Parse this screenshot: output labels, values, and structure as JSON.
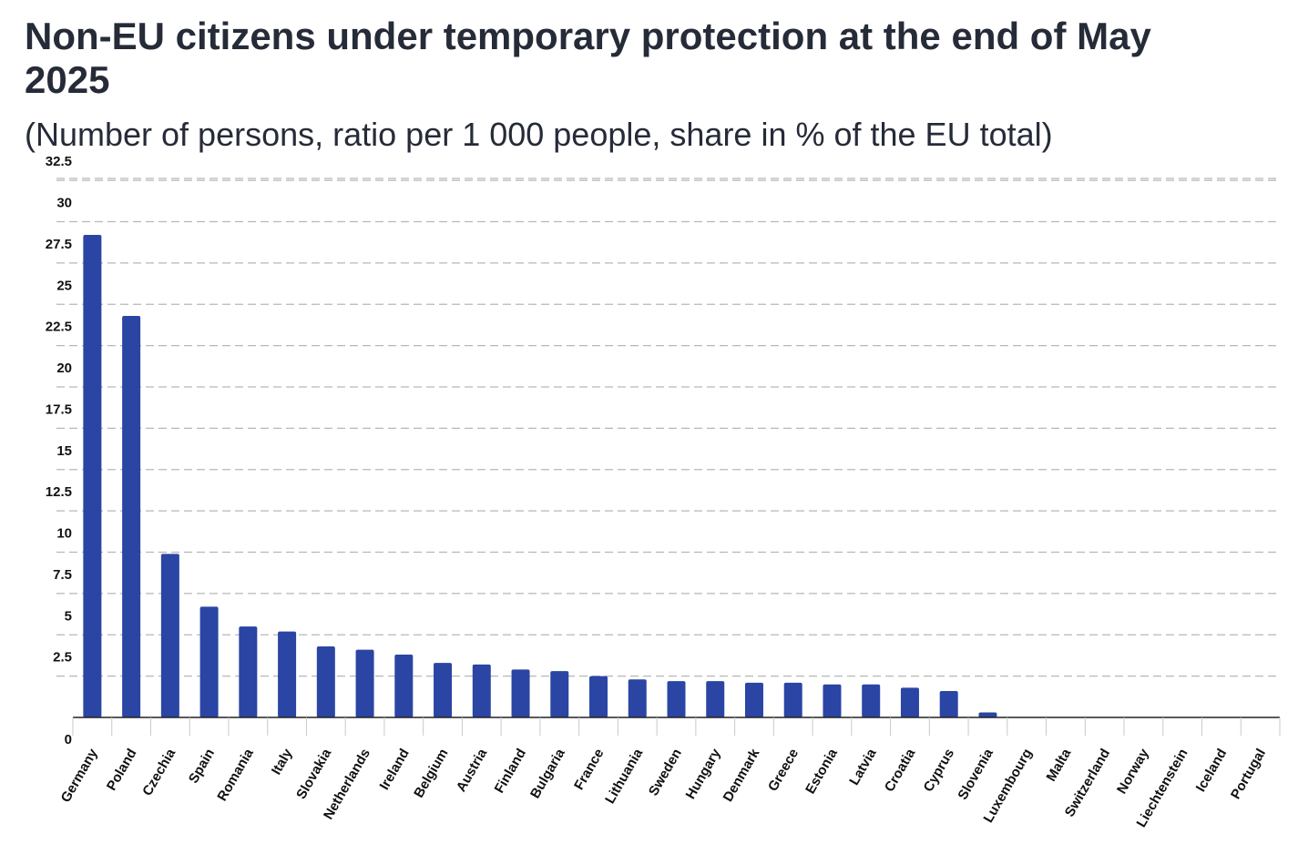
{
  "colors": {
    "bar": "#2a45a3",
    "grid": "#b7b7b7",
    "axis": "#222222",
    "text": "#262b38"
  },
  "chart_data": {
    "type": "bar",
    "title": "Non-EU citizens under temporary protection at the end of May 2025",
    "subtitle": "(Number of persons, ratio per 1 000 people, share in % of the EU total)",
    "xlabel": "",
    "ylabel": "",
    "ylim": [
      0,
      32.5
    ],
    "yticks": [
      0,
      2.5,
      5,
      7.5,
      10,
      12.5,
      15,
      17.5,
      20,
      22.5,
      25,
      27.5,
      30,
      32.5
    ],
    "ytick_labels": [
      "0",
      "2.5",
      "5",
      "7.5",
      "10",
      "12.5",
      "15",
      "17.5",
      "20",
      "22.5",
      "25",
      "27.5",
      "30",
      "32.5"
    ],
    "grid": true,
    "legend": "none",
    "categories": [
      "Germany",
      "Poland",
      "Czechia",
      "Spain",
      "Romania",
      "Italy",
      "Slovakia",
      "Netherlands",
      "Ireland",
      "Belgium",
      "Austria",
      "Finland",
      "Bulgaria",
      "France",
      "Lithuania",
      "Sweden",
      "Hungary",
      "Denmark",
      "Greece",
      "Estonia",
      "Latvia",
      "Croatia",
      "Cyprus",
      "Slovenia",
      "Luxembourg",
      "Malta",
      "Switzerland",
      "Norway",
      "Liechtenstein",
      "Iceland",
      "Portugal"
    ],
    "values": [
      29.2,
      24.3,
      9.9,
      6.7,
      5.5,
      5.2,
      4.3,
      4.1,
      3.8,
      3.3,
      3.2,
      2.9,
      2.8,
      2.5,
      2.3,
      2.2,
      2.2,
      2.1,
      2.1,
      2.0,
      2.0,
      1.8,
      1.6,
      0.3,
      0,
      0,
      0,
      0,
      0,
      0,
      0
    ]
  }
}
